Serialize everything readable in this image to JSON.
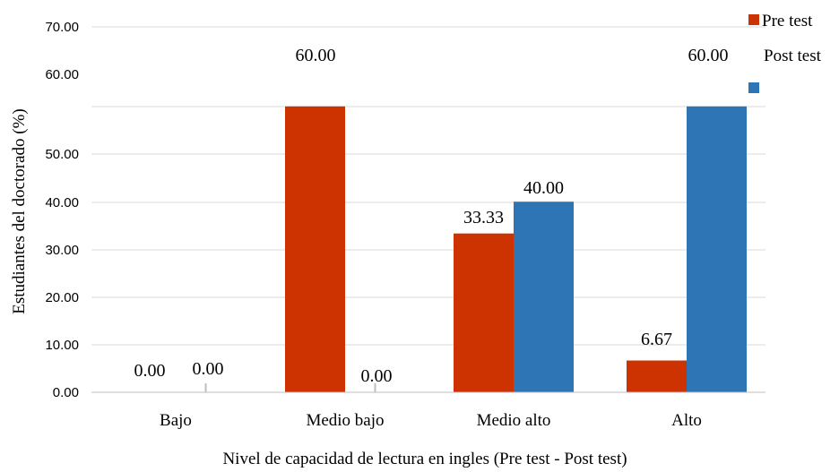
{
  "chart_data": {
    "type": "bar",
    "categories": [
      "Bajo",
      "Medio bajo",
      "Medio alto",
      "Alto"
    ],
    "series": [
      {
        "name": "Pre test",
        "values": [
          0.0,
          60.0,
          33.33,
          6.67
        ],
        "labels": [
          "0.00",
          "60.00",
          "33.33",
          "6.67"
        ],
        "color": "#cc3300"
      },
      {
        "name": "Post test",
        "values": [
          0.0,
          0.0,
          40.0,
          60.0
        ],
        "labels": [
          "0.00",
          "0.00",
          "40.00",
          "60.00"
        ],
        "color": "#2e75b6"
      }
    ],
    "y_ticks": [
      {
        "value": 0,
        "label": "0.00"
      },
      {
        "value": 10,
        "label": "10.00"
      },
      {
        "value": 20,
        "label": "20.00"
      },
      {
        "value": 30,
        "label": "30.00"
      },
      {
        "value": 40,
        "label": "40.00"
      },
      {
        "value": 50,
        "label": "50.00"
      },
      {
        "value": 60,
        "label": "60.00"
      },
      {
        "value": 70,
        "label": "70.00"
      }
    ],
    "xlabel": "Nivel de capacidad de lectura en ingles (Pre test - Post test)",
    "ylabel": "Estudiantes del doctorado (%)",
    "ylim": [
      0,
      60
    ],
    "grid": true,
    "legend_position": "top-right"
  }
}
